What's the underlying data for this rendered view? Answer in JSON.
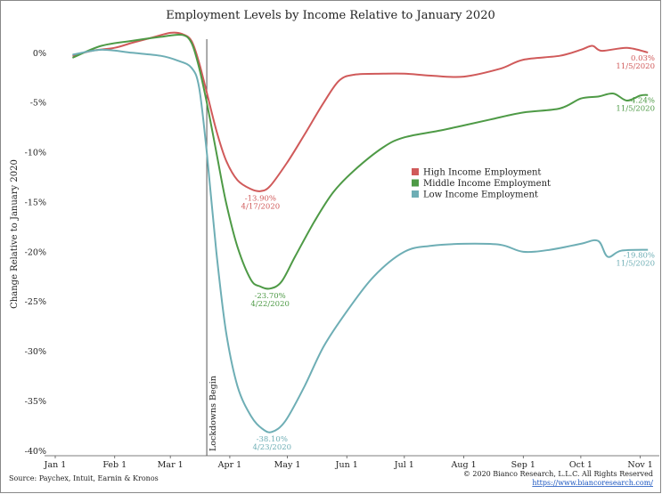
{
  "chart_data": {
    "type": "line",
    "title": "Employment Levels by Income Relative to January 2020",
    "xlabel": "",
    "ylabel": "Change Relative to January 2020",
    "x_tick_labels": [
      "Jan 1",
      "Feb 1",
      "Mar 1",
      "Apr 1",
      "May 1",
      "Jun 1",
      "Jul 1",
      "Aug 1",
      "Sep 1",
      "Oct 1",
      "Nov 1"
    ],
    "y_tick_labels": [
      "0%",
      "-5%",
      "-10%",
      "-15%",
      "-20%",
      "-25%",
      "-30%",
      "-35%",
      "-40%"
    ],
    "ylim": [
      -40.5,
      2.8
    ],
    "xlim": [
      "2020-01-01",
      "2020-11-10"
    ],
    "grid": false,
    "legend_position": "center-right",
    "vline": {
      "x": "2020-03-20",
      "label": "Lockdowns Begin"
    },
    "series": [
      {
        "name": "High Income Employment",
        "color": "#d05a5a",
        "points": [
          [
            "2020-01-10",
            -0.3
          ],
          [
            "2020-01-20",
            0.2
          ],
          [
            "2020-02-01",
            0.5
          ],
          [
            "2020-02-10",
            1.0
          ],
          [
            "2020-02-20",
            1.5
          ],
          [
            "2020-03-01",
            2.0
          ],
          [
            "2020-03-07",
            1.9
          ],
          [
            "2020-03-12",
            1.2
          ],
          [
            "2020-03-16",
            -1.0
          ],
          [
            "2020-03-20",
            -4.0
          ],
          [
            "2020-03-25",
            -7.8
          ],
          [
            "2020-03-30",
            -10.8
          ],
          [
            "2020-04-05",
            -12.8
          ],
          [
            "2020-04-12",
            -13.7
          ],
          [
            "2020-04-17",
            -13.9
          ],
          [
            "2020-04-22",
            -13.4
          ],
          [
            "2020-05-01",
            -11.0
          ],
          [
            "2020-05-10",
            -8.2
          ],
          [
            "2020-05-20",
            -5.0
          ],
          [
            "2020-05-28",
            -2.8
          ],
          [
            "2020-06-05",
            -2.2
          ],
          [
            "2020-06-20",
            -2.1
          ],
          [
            "2020-07-01",
            -2.1
          ],
          [
            "2020-07-15",
            -2.3
          ],
          [
            "2020-08-01",
            -2.4
          ],
          [
            "2020-08-20",
            -1.6
          ],
          [
            "2020-09-01",
            -0.7
          ],
          [
            "2020-09-20",
            -0.3
          ],
          [
            "2020-10-01",
            0.3
          ],
          [
            "2020-10-07",
            0.7
          ],
          [
            "2020-10-12",
            0.2
          ],
          [
            "2020-10-25",
            0.5
          ],
          [
            "2020-11-05",
            0.03
          ]
        ],
        "end_label": "0.03%",
        "end_date": "11/5/2020",
        "trough_label": "-13.90%",
        "trough_date": "4/17/2020"
      },
      {
        "name": "Middle Income Employment",
        "color": "#4e9a46",
        "points": [
          [
            "2020-01-10",
            -0.5
          ],
          [
            "2020-01-25",
            0.7
          ],
          [
            "2020-02-10",
            1.2
          ],
          [
            "2020-02-25",
            1.6
          ],
          [
            "2020-03-07",
            1.8
          ],
          [
            "2020-03-12",
            1.0
          ],
          [
            "2020-03-16",
            -1.5
          ],
          [
            "2020-03-20",
            -5.0
          ],
          [
            "2020-03-25",
            -10.0
          ],
          [
            "2020-03-30",
            -15.0
          ],
          [
            "2020-04-05",
            -19.5
          ],
          [
            "2020-04-12",
            -22.8
          ],
          [
            "2020-04-17",
            -23.5
          ],
          [
            "2020-04-22",
            -23.7
          ],
          [
            "2020-04-28",
            -23.0
          ],
          [
            "2020-05-05",
            -20.5
          ],
          [
            "2020-05-15",
            -17.0
          ],
          [
            "2020-05-25",
            -14.0
          ],
          [
            "2020-06-05",
            -11.8
          ],
          [
            "2020-06-20",
            -9.5
          ],
          [
            "2020-07-01",
            -8.5
          ],
          [
            "2020-07-20",
            -7.8
          ],
          [
            "2020-08-01",
            -7.3
          ],
          [
            "2020-08-15",
            -6.7
          ],
          [
            "2020-09-01",
            -6.0
          ],
          [
            "2020-09-20",
            -5.6
          ],
          [
            "2020-10-01",
            -4.6
          ],
          [
            "2020-10-10",
            -4.4
          ],
          [
            "2020-10-18",
            -4.1
          ],
          [
            "2020-10-25",
            -4.8
          ],
          [
            "2020-11-01",
            -4.3
          ],
          [
            "2020-11-05",
            -4.24
          ]
        ],
        "end_label": "-4.24%",
        "end_date": "11/5/2020",
        "trough_label": "-23.70%",
        "trough_date": "4/22/2020"
      },
      {
        "name": "Low Income Employment",
        "color": "#6eaeb5",
        "points": [
          [
            "2020-01-10",
            -0.2
          ],
          [
            "2020-01-25",
            0.3
          ],
          [
            "2020-02-10",
            0.0
          ],
          [
            "2020-02-25",
            -0.3
          ],
          [
            "2020-03-05",
            -0.8
          ],
          [
            "2020-03-12",
            -1.5
          ],
          [
            "2020-03-16",
            -3.5
          ],
          [
            "2020-03-20",
            -10.0
          ],
          [
            "2020-03-25",
            -20.0
          ],
          [
            "2020-03-30",
            -28.0
          ],
          [
            "2020-04-05",
            -33.5
          ],
          [
            "2020-04-12",
            -36.5
          ],
          [
            "2020-04-18",
            -37.8
          ],
          [
            "2020-04-23",
            -38.1
          ],
          [
            "2020-04-30",
            -37.0
          ],
          [
            "2020-05-10",
            -33.5
          ],
          [
            "2020-05-20",
            -29.5
          ],
          [
            "2020-06-01",
            -26.0
          ],
          [
            "2020-06-15",
            -22.5
          ],
          [
            "2020-07-01",
            -20.0
          ],
          [
            "2020-07-15",
            -19.4
          ],
          [
            "2020-08-01",
            -19.2
          ],
          [
            "2020-08-20",
            -19.3
          ],
          [
            "2020-09-01",
            -20.0
          ],
          [
            "2020-09-15",
            -19.8
          ],
          [
            "2020-10-01",
            -19.2
          ],
          [
            "2020-10-10",
            -18.9
          ],
          [
            "2020-10-15",
            -20.5
          ],
          [
            "2020-10-22",
            -19.9
          ],
          [
            "2020-11-05",
            -19.8
          ]
        ],
        "end_label": "-19.80%",
        "end_date": "11/5/2020",
        "trough_label": "-38.10%",
        "trough_date": "4/23/2020"
      }
    ]
  },
  "footer": {
    "source": "Source: Paychex, Intuit, Earnin & Kronos",
    "copyright": "© 2020 Bianco Research, L.L.C. All Rights Reserved",
    "url": "https://www.biancoresearch.com/"
  }
}
